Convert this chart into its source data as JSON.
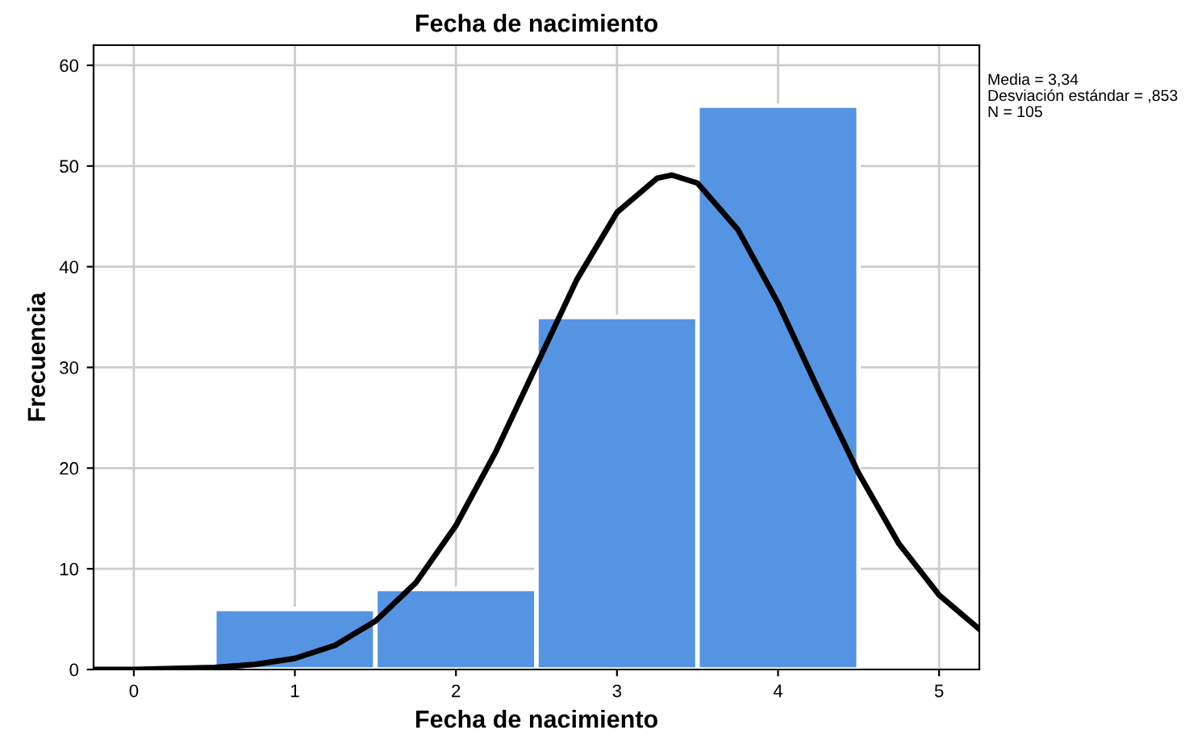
{
  "chart_data": {
    "type": "histogram",
    "title": "Fecha de nacimiento",
    "xlabel": "Fecha de nacimiento",
    "ylabel": "Frecuencia",
    "series": [
      {
        "bins": [
          0.5,
          1.5,
          2.5,
          3.5,
          4.5
        ],
        "values": [
          6,
          8,
          35,
          56
        ],
        "color": "#5594e3"
      },
      {
        "type": "line",
        "color": "#000000",
        "x": [
          -0.25,
          0,
          0.5,
          0.75,
          1,
          1.25,
          1.5,
          1.75,
          2,
          2.25,
          2.5,
          2.75,
          3,
          3.25,
          3.34,
          3.5,
          3.75,
          4,
          4.25,
          4.5,
          4.75,
          5,
          5.25
        ],
        "values": [
          0,
          0,
          0.2,
          0.5,
          1.1,
          2.4,
          4.8,
          8.6,
          14.3,
          21.7,
          30.2,
          38.7,
          45.4,
          48.8,
          49.1,
          48.3,
          43.7,
          36.4,
          27.8,
          19.5,
          12.5,
          7.4,
          4.0
        ]
      }
    ],
    "xlim": [
      -0.25,
      5.25
    ],
    "xticks": [
      0,
      1,
      2,
      3,
      4,
      5
    ],
    "ylim": [
      0,
      62
    ],
    "yticks": [
      0,
      10,
      20,
      30,
      40,
      50,
      60
    ],
    "grid": true,
    "annotations": [
      "Media = 3,34",
      "Desviación estándar = ,853",
      "N = 105"
    ]
  }
}
